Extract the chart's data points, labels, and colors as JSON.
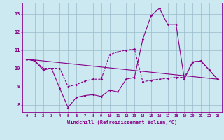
{
  "xlabel": "Windchill (Refroidissement éolien,°C)",
  "background_color": "#cce8f0",
  "grid_color": "#99bbcc",
  "line_color": "#880088",
  "x_ticks": [
    0,
    1,
    2,
    3,
    4,
    5,
    6,
    7,
    8,
    9,
    10,
    11,
    12,
    13,
    14,
    15,
    16,
    17,
    18,
    19,
    20,
    21,
    22,
    23
  ],
  "y_ticks": [
    8,
    9,
    10,
    11,
    12,
    13
  ],
  "ylim": [
    7.6,
    13.6
  ],
  "xlim": [
    -0.5,
    23.5
  ],
  "line1_x": [
    0,
    1,
    2,
    3,
    4,
    5,
    6,
    7,
    8,
    9,
    10,
    11,
    12,
    13,
    14,
    15,
    16,
    17,
    18,
    19,
    20,
    21,
    22,
    23
  ],
  "line1_y": [
    10.5,
    10.4,
    9.9,
    10.0,
    8.9,
    7.85,
    8.4,
    8.5,
    8.55,
    8.45,
    8.8,
    8.7,
    9.4,
    9.5,
    11.6,
    12.9,
    13.3,
    12.4,
    12.4,
    9.4,
    10.35,
    10.4,
    9.9,
    9.4
  ],
  "line2_x": [
    0,
    1,
    2,
    3,
    4,
    5,
    6,
    7,
    8,
    9,
    10,
    11,
    12,
    13,
    14,
    15,
    16,
    17,
    18,
    19,
    20,
    21,
    22,
    23
  ],
  "line2_y": [
    10.5,
    10.4,
    10.0,
    10.0,
    10.0,
    9.0,
    9.1,
    9.3,
    9.4,
    9.4,
    10.75,
    10.9,
    11.0,
    11.05,
    9.25,
    9.35,
    9.4,
    9.45,
    9.5,
    9.5,
    10.35,
    10.4,
    9.9,
    9.4
  ],
  "line3_x": [
    0,
    23
  ],
  "line3_y": [
    10.5,
    9.4
  ]
}
